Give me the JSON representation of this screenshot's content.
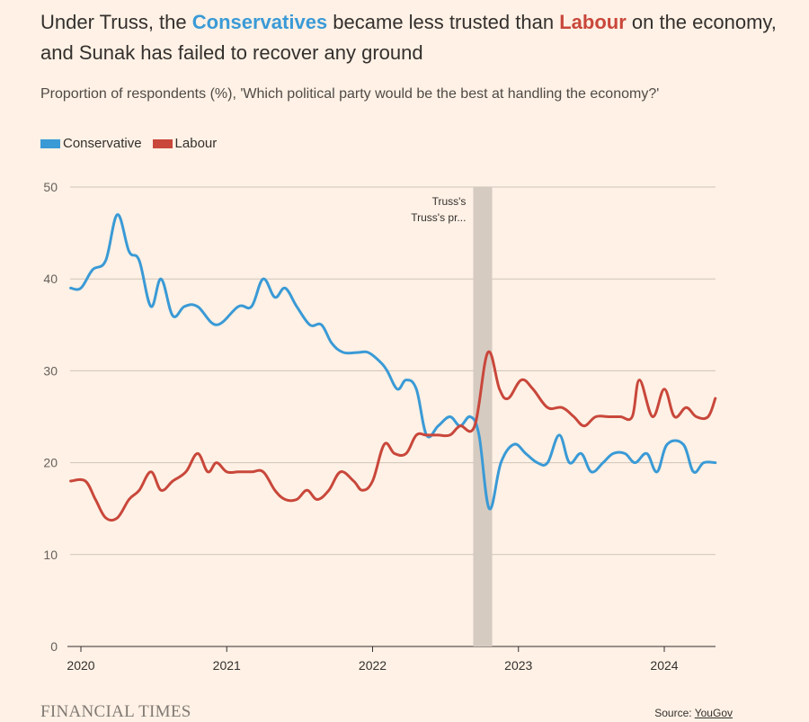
{
  "title": {
    "part1": "Under Truss, the ",
    "cons": "Conservatives",
    "part2": " became less trusted than ",
    "lab": "Labour",
    "part3": " on the economy, and Sunak has failed to recover any ground"
  },
  "subtitle": "Proportion of respondents (%), 'Which political party would be the best at handling the economy?'",
  "footer": {
    "brand": "FINANCIAL TIMES",
    "source_prefix": "Source: ",
    "source_link": "YouGov"
  },
  "colors": {
    "conservative": "#3a9ad6",
    "labour": "#c9473b",
    "band": "#d6cbc1",
    "grid": "#cfc4ba",
    "background": "#fff1e5"
  },
  "chart_data": {
    "type": "line",
    "title": "",
    "xlabel": "",
    "ylabel": "",
    "ylim": [
      0,
      50
    ],
    "yticks": [
      "0",
      "10",
      "20",
      "30",
      "40",
      "50"
    ],
    "xticks": [
      "2020",
      "2021",
      "2022",
      "2023",
      "2024"
    ],
    "xlim": [
      2019.93,
      2024.35
    ],
    "grid": true,
    "legend_position": "top-left",
    "annotation": {
      "line1": "Truss's",
      "line2": "Truss's pr...",
      "x_start": 2022.69,
      "x_end": 2022.82
    },
    "series": [
      {
        "name": "Conservative",
        "color": "#3a9ad6",
        "points": [
          [
            2019.93,
            39
          ],
          [
            2020.0,
            39
          ],
          [
            2020.08,
            41
          ],
          [
            2020.17,
            42
          ],
          [
            2020.25,
            47
          ],
          [
            2020.33,
            43
          ],
          [
            2020.4,
            42
          ],
          [
            2020.48,
            37
          ],
          [
            2020.55,
            40
          ],
          [
            2020.63,
            36
          ],
          [
            2020.71,
            37
          ],
          [
            2020.8,
            37
          ],
          [
            2020.93,
            35
          ],
          [
            2021.08,
            37
          ],
          [
            2021.17,
            37
          ],
          [
            2021.25,
            40
          ],
          [
            2021.33,
            38
          ],
          [
            2021.4,
            39
          ],
          [
            2021.48,
            37
          ],
          [
            2021.57,
            35
          ],
          [
            2021.65,
            35
          ],
          [
            2021.72,
            33
          ],
          [
            2021.8,
            32
          ],
          [
            2021.9,
            32
          ],
          [
            2021.97,
            32
          ],
          [
            2022.05,
            31
          ],
          [
            2022.1,
            30
          ],
          [
            2022.17,
            28
          ],
          [
            2022.23,
            29
          ],
          [
            2022.3,
            28
          ],
          [
            2022.37,
            23
          ],
          [
            2022.45,
            24
          ],
          [
            2022.53,
            25
          ],
          [
            2022.6,
            24
          ],
          [
            2022.67,
            25
          ],
          [
            2022.73,
            23
          ],
          [
            2022.8,
            15
          ],
          [
            2022.88,
            20
          ],
          [
            2022.97,
            22
          ],
          [
            2023.05,
            21
          ],
          [
            2023.13,
            20
          ],
          [
            2023.2,
            20
          ],
          [
            2023.28,
            23
          ],
          [
            2023.35,
            20
          ],
          [
            2023.43,
            21
          ],
          [
            2023.5,
            19
          ],
          [
            2023.58,
            20
          ],
          [
            2023.65,
            21
          ],
          [
            2023.73,
            21
          ],
          [
            2023.8,
            20
          ],
          [
            2023.88,
            21
          ],
          [
            2023.95,
            19
          ],
          [
            2024.02,
            22
          ],
          [
            2024.13,
            22
          ],
          [
            2024.2,
            19
          ],
          [
            2024.27,
            20
          ],
          [
            2024.35,
            20
          ]
        ]
      },
      {
        "name": "Labour",
        "color": "#c9473b",
        "points": [
          [
            2019.93,
            18
          ],
          [
            2020.03,
            18
          ],
          [
            2020.1,
            16
          ],
          [
            2020.17,
            14
          ],
          [
            2020.25,
            14
          ],
          [
            2020.33,
            16
          ],
          [
            2020.4,
            17
          ],
          [
            2020.48,
            19
          ],
          [
            2020.55,
            17
          ],
          [
            2020.63,
            18
          ],
          [
            2020.72,
            19
          ],
          [
            2020.8,
            21
          ],
          [
            2020.87,
            19
          ],
          [
            2020.93,
            20
          ],
          [
            2021.0,
            19
          ],
          [
            2021.08,
            19
          ],
          [
            2021.17,
            19
          ],
          [
            2021.25,
            19
          ],
          [
            2021.33,
            17
          ],
          [
            2021.4,
            16
          ],
          [
            2021.48,
            16
          ],
          [
            2021.55,
            17
          ],
          [
            2021.62,
            16
          ],
          [
            2021.7,
            17
          ],
          [
            2021.78,
            19
          ],
          [
            2021.87,
            18
          ],
          [
            2021.93,
            17
          ],
          [
            2022.0,
            18
          ],
          [
            2022.08,
            22
          ],
          [
            2022.15,
            21
          ],
          [
            2022.23,
            21
          ],
          [
            2022.3,
            23
          ],
          [
            2022.37,
            23
          ],
          [
            2022.45,
            23
          ],
          [
            2022.53,
            23
          ],
          [
            2022.6,
            24
          ],
          [
            2022.7,
            24
          ],
          [
            2022.79,
            32
          ],
          [
            2022.87,
            28
          ],
          [
            2022.93,
            27
          ],
          [
            2023.02,
            29
          ],
          [
            2023.1,
            28
          ],
          [
            2023.2,
            26
          ],
          [
            2023.3,
            26
          ],
          [
            2023.38,
            25
          ],
          [
            2023.45,
            24
          ],
          [
            2023.53,
            25
          ],
          [
            2023.62,
            25
          ],
          [
            2023.7,
            25
          ],
          [
            2023.78,
            25
          ],
          [
            2023.83,
            29
          ],
          [
            2023.92,
            25
          ],
          [
            2024.0,
            28
          ],
          [
            2024.07,
            25
          ],
          [
            2024.15,
            26
          ],
          [
            2024.22,
            25
          ],
          [
            2024.3,
            25
          ],
          [
            2024.35,
            27
          ]
        ]
      }
    ]
  }
}
